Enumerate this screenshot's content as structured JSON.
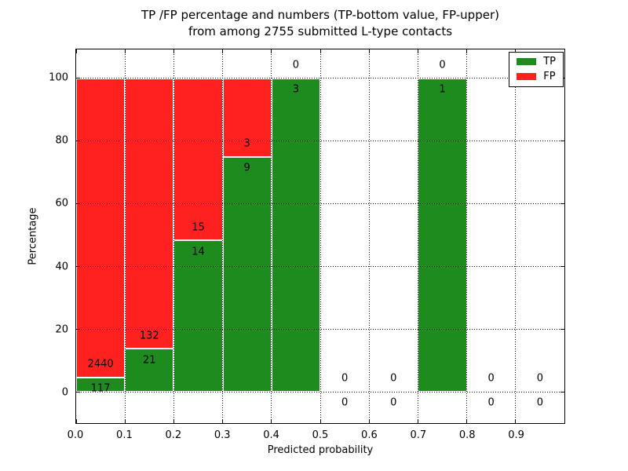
{
  "title": {
    "line1": "TP /FP percentage and numbers (TP-bottom value, FP-upper)",
    "line2": "from among 2755 submitted L-type contacts"
  },
  "chart_data": {
    "type": "bar",
    "stacked": true,
    "title": "TP /FP percentage and numbers (TP-bottom value, FP-upper) from among 2755 submitted L-type contacts",
    "xlabel": "Predicted probability",
    "ylabel": "Percentage",
    "xlim": [
      0.0,
      1.0
    ],
    "ylim": [
      -10,
      109.2
    ],
    "x_ticks": [
      "0.0",
      "0.1",
      "0.2",
      "0.3",
      "0.4",
      "0.5",
      "0.6",
      "0.7",
      "0.8",
      "0.9"
    ],
    "y_ticks": [
      0,
      20,
      40,
      60,
      80,
      100
    ],
    "grid": "dotted",
    "legend_position": "upper right",
    "total_contacts": 2755,
    "colors": {
      "tp": "#1e8b1e",
      "fp": "#ff2020"
    },
    "legend": [
      {
        "label": "TP",
        "color": "#1e8b1e"
      },
      {
        "label": "FP",
        "color": "#ff2020"
      }
    ],
    "bins": [
      {
        "range": [
          0.0,
          0.1
        ],
        "tp": 117,
        "fp": 2440
      },
      {
        "range": [
          0.1,
          0.2
        ],
        "tp": 21,
        "fp": 132
      },
      {
        "range": [
          0.2,
          0.3
        ],
        "tp": 14,
        "fp": 15
      },
      {
        "range": [
          0.3,
          0.4
        ],
        "tp": 9,
        "fp": 3
      },
      {
        "range": [
          0.4,
          0.5
        ],
        "tp": 3,
        "fp": 0
      },
      {
        "range": [
          0.5,
          0.6
        ],
        "tp": 0,
        "fp": 0
      },
      {
        "range": [
          0.6,
          0.7
        ],
        "tp": 0,
        "fp": 0
      },
      {
        "range": [
          0.7,
          0.8
        ],
        "tp": 1,
        "fp": 0
      },
      {
        "range": [
          0.8,
          0.9
        ],
        "tp": 0,
        "fp": 0
      },
      {
        "range": [
          0.9,
          1.0
        ],
        "tp": 0,
        "fp": 0
      }
    ]
  }
}
